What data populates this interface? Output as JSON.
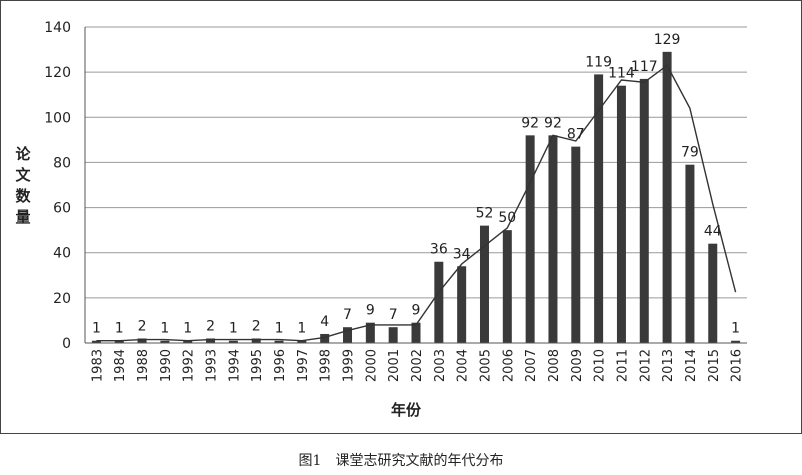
{
  "caption": "图1　课堂志研究文献的年代分布",
  "chart_data": {
    "type": "bar",
    "title": "",
    "xlabel": "年份",
    "ylabel": "论文数量",
    "ylim": [
      0,
      140
    ],
    "yticks": [
      0,
      20,
      40,
      60,
      80,
      100,
      120,
      140
    ],
    "grid": true,
    "categories": [
      "1983",
      "1984",
      "1988",
      "1990",
      "1992",
      "1993",
      "1994",
      "1995",
      "1996",
      "1997",
      "1998",
      "1999",
      "2000",
      "2001",
      "2002",
      "2003",
      "2004",
      "2005",
      "2006",
      "2007",
      "2008",
      "2009",
      "2010",
      "2011",
      "2012",
      "2013",
      "2014",
      "2015",
      "2016"
    ],
    "series": [
      {
        "values": [
          1,
          1,
          2,
          1,
          1,
          2,
          1,
          2,
          1,
          1,
          4,
          7,
          9,
          7,
          9,
          36,
          34,
          52,
          50,
          92,
          92,
          87,
          119,
          114,
          117,
          129,
          79,
          44,
          1
        ]
      }
    ],
    "trendline": [
      1,
      1,
      1.5,
      1.5,
      1,
      1.5,
      1.5,
      1.5,
      1.5,
      1,
      2.5,
      5.5,
      8,
      8,
      8,
      22.5,
      35,
      43,
      51,
      71,
      92,
      89.5,
      103,
      116.5,
      115.5,
      123,
      104,
      61.5,
      22.5
    ],
    "bar_color": "#3a3a3a",
    "line_color": "#333333"
  }
}
